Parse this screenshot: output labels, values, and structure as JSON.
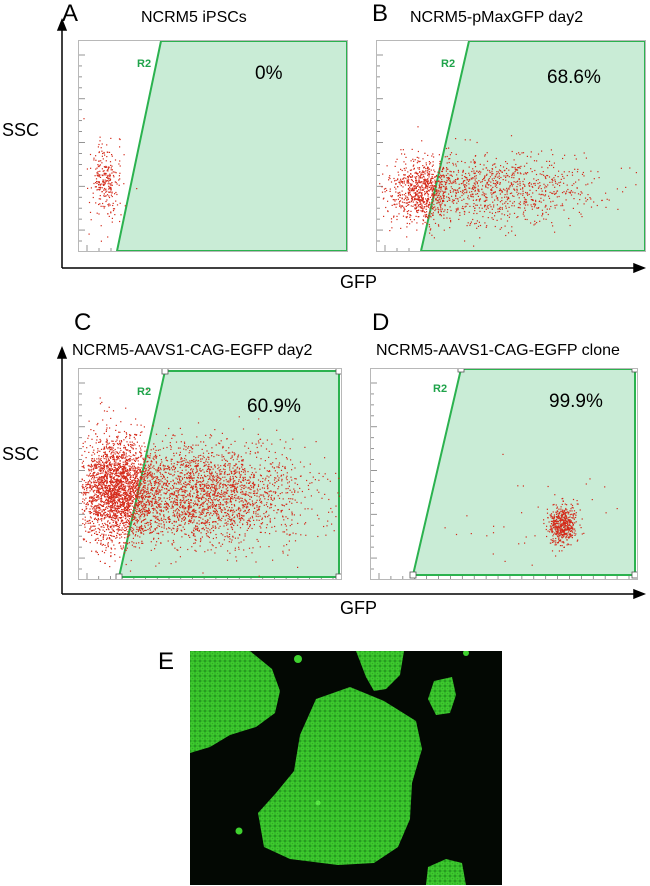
{
  "figure": {
    "panels": [
      {
        "letter": "A",
        "title": "NCRM5 iPSCs",
        "gate": "R2",
        "percent": "0%"
      },
      {
        "letter": "B",
        "title": "NCRM5-pMaxGFP day2",
        "gate": "R2",
        "percent": "68.6%"
      },
      {
        "letter": "C",
        "title": "NCRM5-AAVS1-CAG-EGFP day2",
        "gate": "R2",
        "percent": "60.9%"
      },
      {
        "letter": "D",
        "title": "NCRM5-AAVS1-CAG-EGFP clone",
        "gate": "R2",
        "percent": "99.9%"
      }
    ],
    "axes": {
      "top_row": {
        "ylabel": "SSC",
        "xlabel": "GFP"
      },
      "bottom_row": {
        "ylabel": "SSC",
        "xlabel": "GFP"
      }
    },
    "image_panel": {
      "letter": "E"
    }
  },
  "chart_data": [
    {
      "type": "scatter",
      "panel": "A",
      "title": "NCRM5 iPSCs",
      "xlabel": "GFP",
      "ylabel": "SSC",
      "gate": "R2",
      "gated_percent": 0
    },
    {
      "type": "scatter",
      "panel": "B",
      "title": "NCRM5-pMaxGFP day2",
      "xlabel": "GFP",
      "ylabel": "SSC",
      "gate": "R2",
      "gated_percent": 68.6
    },
    {
      "type": "scatter",
      "panel": "C",
      "title": "NCRM5-AAVS1-CAG-EGFP day2",
      "xlabel": "GFP",
      "ylabel": "SSC",
      "gate": "R2",
      "gated_percent": 60.9
    },
    {
      "type": "scatter",
      "panel": "D",
      "title": "NCRM5-AAVS1-CAG-EGFP clone",
      "xlabel": "GFP",
      "ylabel": "SSC",
      "gate": "R2",
      "gated_percent": 99.9
    }
  ],
  "colors": {
    "dots": "#d42a1a",
    "gate_fill": "#c9ecd6",
    "gate_stroke": "#2bb24f",
    "gfp": "#39d12b",
    "background_micro": "#030803"
  }
}
